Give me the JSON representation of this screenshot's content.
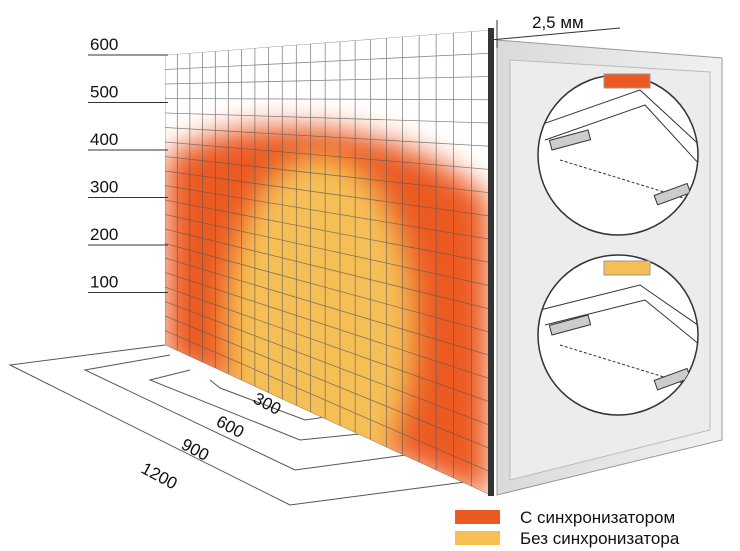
{
  "height_labels": [
    "600",
    "500",
    "400",
    "300",
    "200",
    "100"
  ],
  "thickness_label": "2,5 мм",
  "depth_labels": [
    "300",
    "600",
    "900",
    "1200"
  ],
  "legend": [
    {
      "label": "С синхронизатором"
    },
    {
      "label": "Без синхронизатора"
    }
  ]
}
